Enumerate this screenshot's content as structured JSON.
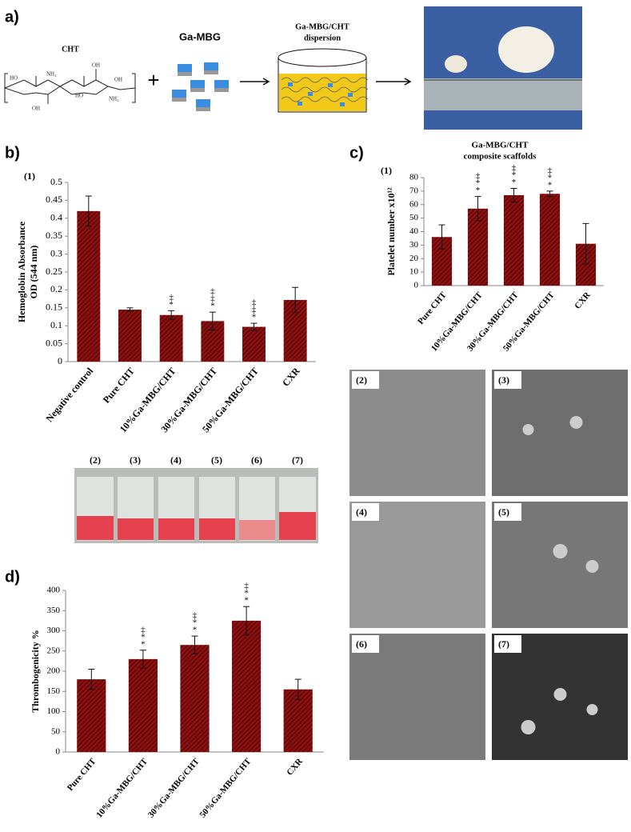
{
  "panels": {
    "a": "a)",
    "b": "b)",
    "c": "c)",
    "d": "d)"
  },
  "schematic": {
    "cht": "CHT",
    "molecule_labels": [
      "HO",
      "NH₂",
      "OH",
      "OH",
      "HO",
      "NH₂",
      "OH"
    ],
    "plus": "+",
    "ga_mbg": "Ga-MBG",
    "dispersion": [
      "Ga-MBG/CHT",
      "dispersion"
    ]
  },
  "tube_labels": [
    "(2)",
    "(3)",
    "(4)",
    "(5)",
    "(6)",
    "(7)"
  ],
  "sem_labels": [
    "(2)",
    "(3)",
    "(4)",
    "(5)",
    "(6)",
    "(7)"
  ],
  "chart_data": [
    {
      "type": "bar",
      "label": "(1)",
      "ylabel": [
        "Hemoglobin Absorbance",
        "OD (544 nm)"
      ],
      "color": "#8b1010",
      "categories": [
        "Negative control",
        "Pure CHT",
        "10%Ga-MBG/CHT",
        "30%Ga-MBG/CHT",
        "50%Ga-MBG/CHT",
        "CXR"
      ],
      "values": [
        0.42,
        0.145,
        0.13,
        0.113,
        0.097,
        0.172
      ],
      "errors": [
        0.042,
        0.005,
        0.012,
        0.025,
        0.01,
        0.035
      ],
      "annotations": [
        [],
        [],
        [
          "‡",
          "*"
        ],
        [
          "‡",
          "‡",
          "*"
        ],
        [
          "‡",
          "‡",
          "*"
        ],
        []
      ],
      "ylim": [
        0,
        0.5
      ],
      "yticks": [
        0,
        0.05,
        0.1,
        0.15,
        0.2,
        0.25,
        0.3,
        0.35,
        0.4,
        0.45,
        0.5
      ]
    },
    {
      "type": "bar",
      "label": "(1)",
      "title": [
        "Ga-MBG/CHT",
        "composite scaffolds"
      ],
      "ylabel": [
        "Platelet number x10¹²"
      ],
      "color": "#8b1010",
      "categories": [
        "Pure CHT",
        "10%Ga-MBG/CHT",
        "30%Ga-MBG/CHT",
        "50%Ga-MBG/CHT",
        "CXR"
      ],
      "values": [
        36,
        57,
        67,
        68,
        31
      ],
      "errors": [
        9,
        9,
        5,
        2,
        15
      ],
      "annotations": [
        [],
        [
          "‡",
          "*",
          "*"
        ],
        [
          "‡",
          "*",
          "*"
        ],
        [
          "‡",
          "*",
          "*"
        ],
        []
      ],
      "ylim": [
        0,
        80
      ],
      "yticks": [
        0,
        10,
        20,
        30,
        40,
        50,
        60,
        70,
        80
      ]
    },
    {
      "type": "bar",
      "ylabel": [
        "Thrombogenicity %"
      ],
      "color": "#8b1010",
      "categories": [
        "Pure CHT",
        "10%Ga-MBG/CHT",
        "30%Ga-MBG/CHT",
        "50%Ga-MBG/CHT",
        "CXR"
      ],
      "values": [
        180,
        230,
        265,
        325,
        155
      ],
      "errors": [
        25,
        22,
        22,
        35,
        25
      ],
      "annotations": [
        [],
        [
          "‡",
          "*",
          "*"
        ],
        [
          "‡",
          "*",
          "*"
        ],
        [
          "‡",
          "*",
          "*"
        ],
        []
      ],
      "ylim": [
        0,
        400
      ],
      "yticks": [
        0,
        50,
        100,
        150,
        200,
        250,
        300,
        350,
        400
      ]
    }
  ]
}
